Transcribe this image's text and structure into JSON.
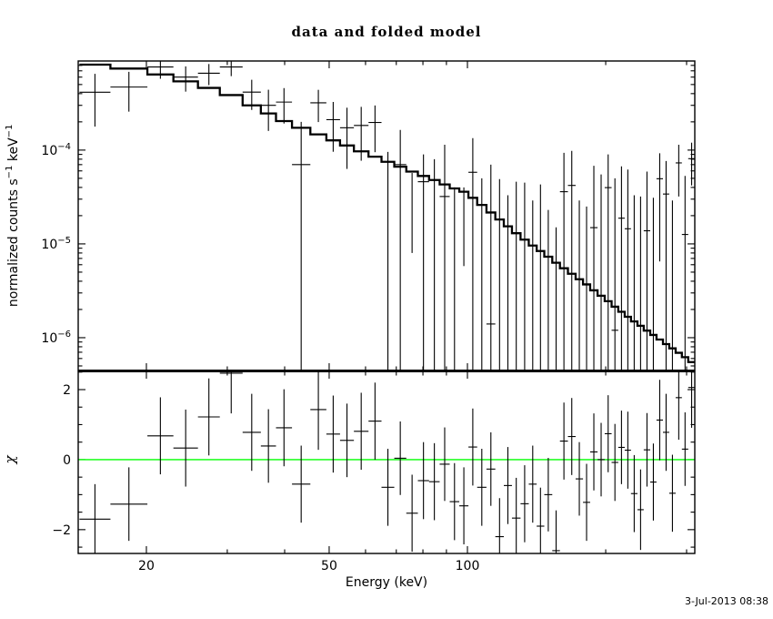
{
  "title": "data and folded model",
  "timestamp": "3-Jul-2013 08:38",
  "axes": {
    "x_label": "Energy (keV)",
    "chi_label": "χ",
    "y_label": {
      "p1": "normalized counts s",
      "s1": "−1",
      "p2": " keV",
      "s2": "−1"
    }
  },
  "chart_data": {
    "type": "scatter",
    "title": "data and folded model",
    "xlabel": "Energy (keV)",
    "x_axis": {
      "scale": "log",
      "min": 14.21,
      "max": 312.6,
      "major_ticks": [
        20,
        50,
        100
      ],
      "major_tick_labels": [
        "20",
        "50",
        "100"
      ],
      "minor_ticks": [
        30,
        40,
        60,
        70,
        80,
        90,
        200,
        300
      ]
    },
    "top_panel": {
      "ylabel": "normalized counts s−1 keV−1",
      "scale": "log",
      "ymin": 4.47e-07,
      "ymax": 0.000891,
      "y_major_ticks": [
        0.0001,
        1e-05,
        1e-06
      ],
      "y_tick_labels": [
        {
          "base": "10",
          "exp": "−4"
        },
        {
          "base": "10",
          "exp": "−5"
        },
        {
          "base": "10",
          "exp": "−6"
        }
      ]
    },
    "residual_panel": {
      "ylabel": "χ",
      "ymin": -2.68,
      "ymax": 2.52,
      "y_major_ticks": [
        -2,
        0,
        2
      ],
      "y_tick_labels": [
        "−2",
        "0",
        "2"
      ],
      "y_minor_ticks": [
        -2.5,
        -1.5,
        -1,
        -0.5,
        0.5,
        1,
        1.5,
        2.5
      ],
      "zero_line": 0,
      "zero_line_color": "#00ff00"
    },
    "bin_edges": [
      14.3,
      16.7,
      20.1,
      22.9,
      25.9,
      28.9,
      32.4,
      35.5,
      38.3,
      41.5,
      45.5,
      49.3,
      52.8,
      56.6,
      60.9,
      65.0,
      69.3,
      73.6,
      78.0,
      82.5,
      87.0,
      91.5,
      96.0,
      100.5,
      105.0,
      110.0,
      115.0,
      120.0,
      125.0,
      130.5,
      136.0,
      141.5,
      147.0,
      153.0,
      159.0,
      165.5,
      172.0,
      178.5,
      185.0,
      192.0,
      199.0,
      206.0,
      213.0,
      220.0,
      227.0,
      234.5,
      242.0,
      250.0,
      258.0,
      266.5,
      275.0,
      284.0,
      293.0,
      302.5,
      313.0
    ],
    "model": [
      0.000815,
      0.00074,
      0.00064,
      0.00054,
      0.00046,
      0.000386,
      0.0003,
      0.000246,
      0.000204,
      0.000173,
      0.000147,
      0.000127,
      0.000112,
      9.7e-05,
      8.5e-05,
      7.5e-05,
      6.65e-05,
      5.9e-05,
      5.3e-05,
      4.8e-05,
      4.3e-05,
      3.9e-05,
      3.6e-05,
      3.1e-05,
      2.6e-05,
      2.16e-05,
      1.82e-05,
      1.54e-05,
      1.3e-05,
      1.11e-05,
      9.6e-06,
      8.4e-06,
      7.3e-06,
      6.3e-06,
      5.5e-06,
      4.8e-06,
      4.2e-06,
      3.7e-06,
      3.2e-06,
      2.8e-06,
      2.45e-06,
      2.14e-06,
      1.89e-06,
      1.67e-06,
      1.49e-06,
      1.34e-06,
      1.19e-06,
      1.07e-06,
      9.55e-07,
      8.55e-07,
      7.7e-07,
      6.9e-07,
      6.2e-07,
      5.5e-07
    ],
    "values": [
      0.000414,
      0.00047,
      0.00077,
      0.0006,
      0.00066,
      0.00077,
      0.000415,
      0.0003,
      0.000325,
      7e-05,
      0.000319,
      0.000211,
      0.000173,
      0.000183,
      0.000197,
      null,
      7e-05,
      null,
      4.6e-05,
      null,
      3.2e-05,
      null,
      null,
      5.8e-05,
      null,
      1.4e-06,
      null,
      null,
      null,
      null,
      null,
      null,
      null,
      null,
      3.6e-05,
      4.2e-05,
      null,
      null,
      1.49e-05,
      2.8e-06,
      3.98e-05,
      1.2e-06,
      1.88e-05,
      1.45e-05,
      null,
      null,
      1.38e-05,
      null,
      4.95e-05,
      3.4e-05,
      null,
      7.3e-05,
      1.26e-05,
      8.1e-05
    ],
    "err_lo": [
      0.000178,
      0.000257,
      0.000576,
      0.00042,
      0.000493,
      0.000614,
      0.000268,
      0.00016,
      0.000192,
      1e-08,
      0.000199,
      9.6e-05,
      6.3e-05,
      7.7e-05,
      9.5e-05,
      1e-08,
      1e-08,
      8e-06,
      1e-08,
      1e-08,
      1e-08,
      1e-08,
      5.8e-06,
      1e-08,
      1e-08,
      1e-08,
      1e-08,
      1e-08,
      1e-08,
      1e-08,
      1e-08,
      1e-08,
      1e-08,
      1e-08,
      1e-08,
      1e-08,
      1e-08,
      1e-08,
      1e-08,
      1e-08,
      1e-08,
      1e-08,
      1e-08,
      1e-08,
      1e-08,
      1e-08,
      1e-08,
      1e-08,
      6.5e-06,
      1e-08,
      1e-08,
      3.2e-05,
      1e-08,
      4.2e-05
    ],
    "err_hi": [
      0.00065,
      0.000683,
      0.00096,
      0.00078,
      0.000827,
      0.000926,
      0.000562,
      0.00044,
      0.000458,
      0.0002,
      0.000439,
      0.000326,
      0.000283,
      0.000289,
      0.000299,
      9.56e-05,
      0.000164,
      5.7e-05,
      9e-05,
      8e-05,
      0.000114,
      4e-05,
      4e-05,
      0.000134,
      5e-05,
      7e-05,
      4.9e-05,
      3.3e-05,
      4.6e-05,
      4.5e-05,
      2.9e-05,
      4.3e-05,
      2.3e-05,
      1.5e-05,
      9.35e-05,
      9.8e-05,
      2.9e-05,
      2.5e-05,
      6.8e-05,
      5.5e-05,
      9e-05,
      5e-05,
      6.7e-05,
      6.2e-05,
      3.3e-05,
      3.2e-05,
      5.9e-05,
      3.1e-05,
      9.25e-05,
      7.65e-05,
      2.9e-05,
      0.000114,
      5.3e-05,
      0.00012
    ],
    "chi": [
      -1.7,
      -1.27,
      0.68,
      0.33,
      1.22,
      2.47,
      0.78,
      0.39,
      0.91,
      -0.7,
      1.43,
      0.73,
      0.55,
      0.81,
      1.1,
      -0.79,
      0.04,
      -1.53,
      -0.6,
      -0.63,
      -0.13,
      -1.2,
      -1.32,
      0.36,
      -0.79,
      -0.27,
      -2.2,
      -0.74,
      -1.67,
      -1.26,
      -0.7,
      -1.9,
      -1.0,
      -2.6,
      0.53,
      0.66,
      -0.55,
      -1.22,
      0.22,
      0.0,
      0.74,
      -0.08,
      0.35,
      0.27,
      -0.97,
      -1.43,
      0.28,
      -0.64,
      1.13,
      0.78,
      -0.96,
      1.77,
      0.3,
      2.06
    ],
    "chi_err": [
      1.0,
      1.05,
      1.1,
      1.1,
      1.1,
      1.15,
      1.1,
      1.05,
      1.1,
      1.1,
      1.15,
      1.1,
      1.05,
      1.1,
      1.1,
      1.1,
      1.05,
      1.1,
      1.1,
      1.1,
      1.05,
      1.1,
      1.1,
      1.1,
      1.1,
      1.05,
      1.1,
      1.1,
      1.15,
      1.1,
      1.1,
      1.1,
      1.05,
      1.15,
      1.1,
      1.1,
      1.05,
      1.1,
      1.1,
      1.05,
      1.1,
      1.1,
      1.05,
      1.1,
      1.1,
      1.15,
      1.05,
      1.1,
      1.15,
      1.1,
      1.1,
      1.2,
      1.05,
      1.15
    ]
  }
}
